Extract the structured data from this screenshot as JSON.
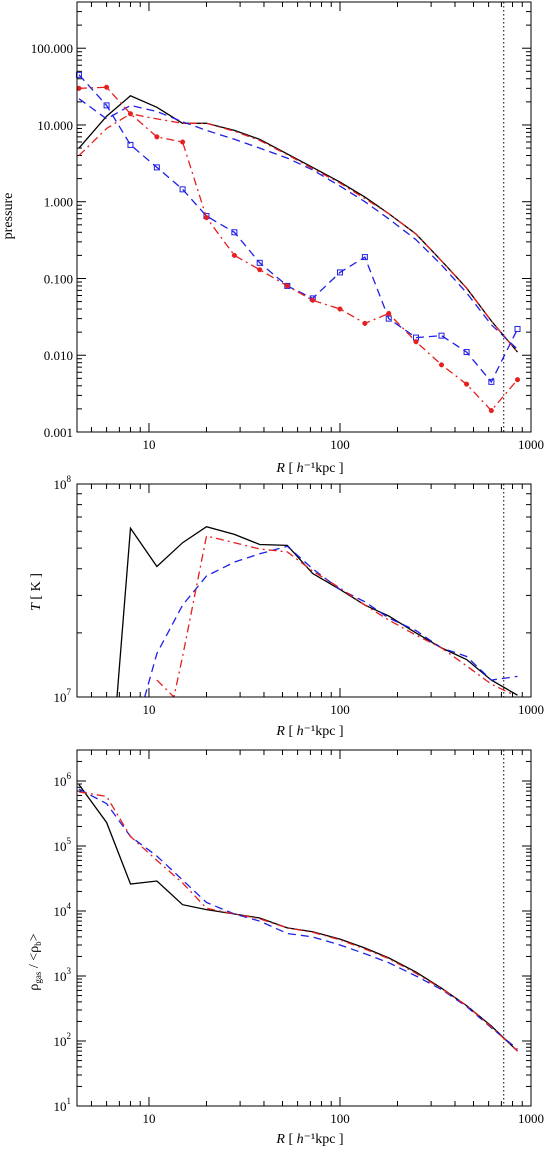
{
  "colors": {
    "black": "#000000",
    "blue": "#1f1fe6",
    "red": "#e61f1f"
  },
  "chart_data": [
    {
      "type": "line",
      "xscale": "log",
      "yscale": "log",
      "xlim": [
        4.2,
        1000
      ],
      "ylim": [
        0.001,
        400
      ],
      "xticks": [
        10,
        100,
        1000
      ],
      "xtick_labels": [
        "10",
        "100",
        "1000"
      ],
      "yticks": [
        0.001,
        0.01,
        0.1,
        1,
        10,
        100
      ],
      "ytick_labels": [
        "0.001",
        "0.010",
        "0.100",
        "1.000",
        "10.000",
        "100.000"
      ],
      "xlabel_parts": [
        "R",
        " [ ",
        "h",
        "⁻¹",
        "kpc ]"
      ],
      "ylabel": "pressure",
      "vline_x": 720,
      "series": [
        {
          "color": "black",
          "dash": "solid",
          "marker": "none",
          "x": [
            4.3,
            6,
            8,
            11,
            15,
            20,
            28,
            38,
            53,
            72,
            100,
            135,
            180,
            250,
            340,
            460,
            620,
            850
          ],
          "y": [
            5,
            13,
            24,
            17,
            10.5,
            10.5,
            8.5,
            6.5,
            4.2,
            2.8,
            1.8,
            1.15,
            0.7,
            0.38,
            0.17,
            0.075,
            0.028,
            0.011
          ]
        },
        {
          "color": "blue",
          "dash": "dashed",
          "marker": "none",
          "x": [
            4.3,
            6,
            8,
            11,
            15,
            20,
            28,
            38,
            53,
            72,
            100,
            135,
            180,
            250,
            340,
            460,
            620,
            850
          ],
          "y": [
            22,
            12,
            18,
            15,
            11,
            8.5,
            6.5,
            5,
            3.7,
            2.6,
            1.6,
            1,
            0.6,
            0.32,
            0.15,
            0.065,
            0.025,
            0.012
          ]
        },
        {
          "color": "red",
          "dash": "dashdot",
          "marker": "none",
          "x": [
            4.3,
            6,
            8,
            11,
            15,
            20,
            28,
            38,
            53,
            72,
            100,
            135,
            180,
            250,
            340,
            460,
            620,
            850
          ],
          "y": [
            4,
            9,
            14,
            12,
            10.5,
            10.5,
            8.3,
            6.3,
            4.1,
            2.7,
            1.75,
            1.1,
            0.7,
            0.38,
            0.17,
            0.075,
            0.028,
            0.011
          ]
        },
        {
          "color": "blue",
          "dash": "dashed",
          "marker": "square",
          "x": [
            4.3,
            6,
            8,
            11,
            15,
            20,
            28,
            38,
            53,
            72,
            100,
            135,
            180,
            250,
            340,
            460,
            620,
            850
          ],
          "y": [
            45,
            18,
            5.5,
            2.8,
            1.45,
            0.65,
            0.4,
            0.16,
            0.08,
            0.055,
            0.12,
            0.19,
            0.03,
            0.017,
            0.018,
            0.011,
            0.0045,
            0.022
          ]
        },
        {
          "color": "red",
          "dash": "dashdot",
          "marker": "diamond",
          "x": [
            4.3,
            6,
            8,
            11,
            15,
            20,
            28,
            38,
            53,
            72,
            100,
            135,
            180,
            250,
            340,
            460,
            620,
            850
          ],
          "y": [
            30,
            31,
            14,
            7,
            6,
            0.62,
            0.2,
            0.13,
            0.08,
            0.052,
            0.04,
            0.026,
            0.035,
            0.015,
            0.0075,
            0.0042,
            0.0019,
            0.0048
          ]
        }
      ]
    },
    {
      "type": "line",
      "xscale": "log",
      "yscale": "log",
      "xlim": [
        4.2,
        1000
      ],
      "ylim": [
        10000000,
        100000000
      ],
      "xticks": [
        10,
        100,
        1000
      ],
      "xtick_labels": [
        "10",
        "100",
        "1000"
      ],
      "yticks": [
        10000000,
        100000000
      ],
      "ytick_labels": [
        {
          "base": "10",
          "exp": "7"
        },
        {
          "base": "10",
          "exp": "8"
        }
      ],
      "xlabel_parts": [
        "R",
        " [ ",
        "h",
        "⁻¹",
        "kpc ]"
      ],
      "ylabel_parts": [
        "T",
        " [ K ]"
      ],
      "vline_x": 720,
      "series": [
        {
          "color": "black",
          "dash": "solid",
          "marker": "none",
          "x": [
            6.8,
            8,
            11,
            15,
            20,
            28,
            38,
            53,
            72,
            100,
            135,
            180,
            250,
            340,
            460,
            620,
            850
          ],
          "y": [
            10000000,
            62000000,
            41000000,
            53000000,
            63000000,
            58000000,
            52000000,
            51500000,
            38000000,
            32000000,
            27000000,
            24000000,
            20000000,
            17000000,
            15000000,
            12000000,
            10200000
          ]
        },
        {
          "color": "blue",
          "dash": "dashed",
          "marker": "none",
          "x": [
            9.5,
            11,
            15,
            20,
            28,
            38,
            53,
            72,
            100,
            135,
            180,
            250,
            340,
            460,
            620,
            850
          ],
          "y": [
            10000000,
            16000000,
            27000000,
            37000000,
            43000000,
            47000000,
            51000000,
            40000000,
            32000000,
            28000000,
            23500000,
            20500000,
            17000000,
            15500000,
            12000000,
            12500000
          ]
        },
        {
          "color": "red",
          "dash": "dashdot",
          "marker": "none",
          "x": [
            11,
            13.5,
            15,
            20,
            28,
            38,
            53,
            72,
            100,
            135,
            180,
            250,
            340,
            460,
            620,
            800
          ],
          "y": [
            12000000,
            10000000,
            15500000,
            57000000,
            53000000,
            49500000,
            48000000,
            39000000,
            32500000,
            27000000,
            23000000,
            19500000,
            17000000,
            14000000,
            11500000,
            10300000
          ]
        }
      ]
    },
    {
      "type": "line",
      "xscale": "log",
      "yscale": "log",
      "xlim": [
        4.2,
        1000
      ],
      "ylim": [
        10,
        3000000
      ],
      "xticks": [
        10,
        100,
        1000
      ],
      "xtick_labels": [
        "10",
        "100",
        "1000"
      ],
      "yticks": [
        10,
        100,
        1000,
        10000,
        100000,
        1000000
      ],
      "ytick_labels": [
        {
          "base": "10",
          "exp": "1"
        },
        {
          "base": "10",
          "exp": "2"
        },
        {
          "base": "10",
          "exp": "3"
        },
        {
          "base": "10",
          "exp": "4"
        },
        {
          "base": "10",
          "exp": "5"
        },
        {
          "base": "10",
          "exp": "6"
        }
      ],
      "xlabel_parts": [
        "R",
        " [ ",
        "h",
        "⁻¹",
        "kpc ]"
      ],
      "ylabel_parts": [
        "ρ",
        "gas",
        " / <ρ",
        "b",
        ">"
      ],
      "vline_x": 720,
      "series": [
        {
          "color": "black",
          "dash": "solid",
          "marker": "none",
          "x": [
            4.3,
            6,
            8,
            11,
            15,
            20,
            28,
            38,
            53,
            72,
            100,
            135,
            180,
            250,
            340,
            460,
            620,
            850
          ],
          "y": [
            880000,
            230000,
            26000,
            29000,
            12500,
            10500,
            9000,
            7800,
            5500,
            4800,
            3700,
            2700,
            1900,
            1150,
            650,
            350,
            170,
            70
          ]
        },
        {
          "color": "blue",
          "dash": "dashed",
          "marker": "none",
          "x": [
            4.3,
            6,
            8,
            11,
            15,
            20,
            28,
            38,
            53,
            72,
            100,
            135,
            180,
            250,
            340,
            460,
            620,
            850
          ],
          "y": [
            750000,
            450000,
            140000,
            70000,
            30000,
            13500,
            9000,
            7000,
            4500,
            4000,
            3000,
            2200,
            1600,
            1000,
            620,
            340,
            160,
            75
          ]
        },
        {
          "color": "red",
          "dash": "dashdot",
          "marker": "none",
          "x": [
            4.3,
            6,
            8,
            11,
            15,
            20,
            28,
            38,
            53,
            72,
            100,
            135,
            180,
            250,
            340,
            460,
            620,
            850
          ],
          "y": [
            680000,
            580000,
            140000,
            60000,
            27000,
            11000,
            9000,
            7600,
            5500,
            4700,
            3600,
            2600,
            1850,
            1100,
            640,
            350,
            165,
            70
          ]
        }
      ]
    }
  ]
}
